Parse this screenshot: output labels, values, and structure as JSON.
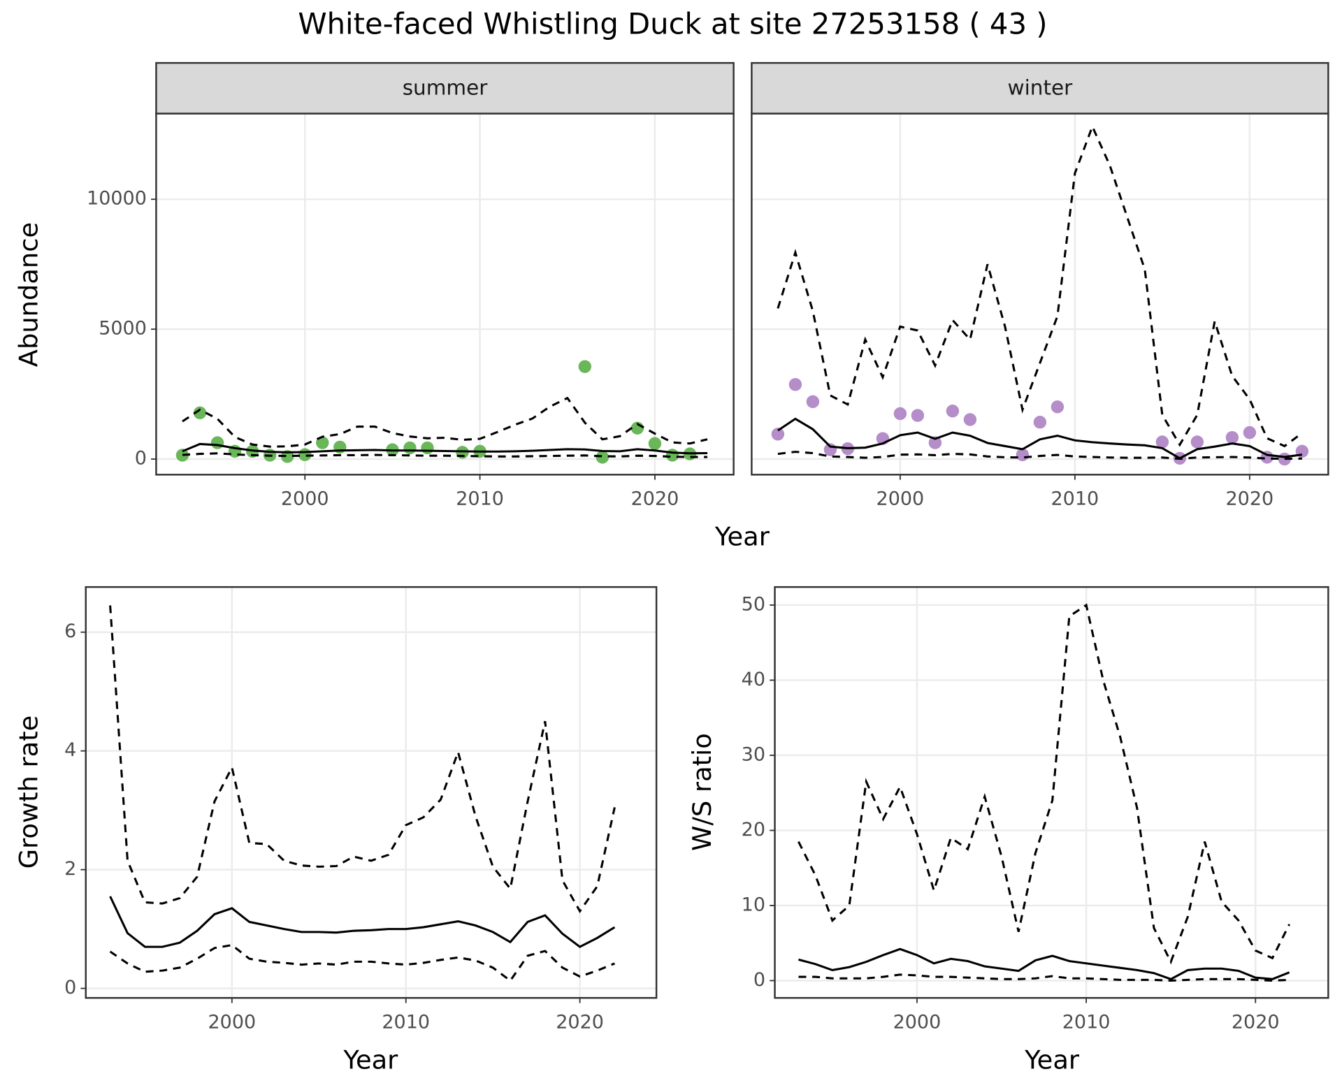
{
  "chart_data": [
    {
      "type": "line",
      "title": "White-faced Whistling Duck at site 27253158 ( 43 )",
      "xlabel": "Year",
      "ylabel": "Abundance",
      "xlim": [
        1991.5,
        2024.5
      ],
      "xticks": [
        2000,
        2010,
        2020
      ],
      "ylim": [
        -600,
        13300
      ],
      "yticks": [
        0,
        5000,
        10000
      ],
      "grid": true,
      "x": [
        1993,
        1994,
        1995,
        1996,
        1997,
        1998,
        1999,
        2000,
        2001,
        2002,
        2003,
        2004,
        2005,
        2006,
        2007,
        2008,
        2009,
        2010,
        2011,
        2012,
        2013,
        2014,
        2015,
        2016,
        2017,
        2018,
        2019,
        2020,
        2021,
        2022,
        2023
      ],
      "panels": [
        {
          "label": "summer",
          "series": [
            {
              "marker": "point",
              "color": "#6ab759",
              "values": [
                150,
                1780,
                630,
                300,
                300,
                150,
                100,
                170,
                630,
                460,
                null,
                null,
                360,
                430,
                430,
                null,
                260,
                300,
                null,
                null,
                null,
                null,
                null,
                3560,
                70,
                null,
                1190,
                600,
                150,
                200,
                null
              ]
            },
            {
              "linestyle": "solid",
              "color": "#000000",
              "values": [
                300,
                580,
                540,
                420,
                330,
                280,
                260,
                270,
                300,
                330,
                340,
                350,
                330,
                330,
                320,
                310,
                300,
                290,
                290,
                300,
                320,
                350,
                380,
                370,
                310,
                300,
                380,
                330,
                250,
                220,
                230
              ]
            },
            {
              "linestyle": "dashed",
              "color": "#000000",
              "values": [
                1450,
                1900,
                1550,
                850,
                560,
                480,
                490,
                560,
                860,
                960,
                1250,
                1250,
                1000,
                870,
                800,
                820,
                740,
                780,
                1040,
                1320,
                1560,
                2020,
                2350,
                1400,
                760,
                880,
                1350,
                980,
                640,
                600,
                760
              ]
            },
            {
              "linestyle": "dashed",
              "color": "#000000",
              "values": [
                160,
                200,
                220,
                180,
                150,
                130,
                120,
                130,
                140,
                150,
                150,
                160,
                150,
                140,
                130,
                130,
                120,
                110,
                100,
                100,
                110,
                120,
                130,
                140,
                110,
                100,
                130,
                120,
                90,
                80,
                80
              ]
            }
          ]
        },
        {
          "label": "winter",
          "series": [
            {
              "marker": "point",
              "color": "#b48dc9",
              "values": [
                960,
                2870,
                2210,
                360,
                400,
                null,
                790,
                1750,
                1680,
                630,
                1850,
                1520,
                null,
                null,
                165,
                1420,
                2010,
                null,
                null,
                null,
                null,
                null,
                660,
                30,
                660,
                null,
                830,
                1020,
                70,
                0,
                300
              ]
            },
            {
              "linestyle": "solid",
              "color": "#000000",
              "values": [
                1100,
                1550,
                1150,
                480,
                420,
                440,
                600,
                920,
                1020,
                780,
                1020,
                900,
                620,
                500,
                380,
                760,
                900,
                720,
                650,
                600,
                560,
                530,
                420,
                30,
                380,
                480,
                600,
                500,
                160,
                80,
                170
              ]
            },
            {
              "linestyle": "dashed",
              "color": "#000000",
              "values": [
                5800,
                7950,
                5700,
                2450,
                2100,
                4600,
                3150,
                5100,
                4950,
                3600,
                5350,
                4600,
                7500,
                5100,
                1900,
                3700,
                5500,
                11000,
                12800,
                11300,
                9300,
                7300,
                1700,
                550,
                1700,
                5300,
                3200,
                2300,
                800,
                500,
                1000
              ]
            },
            {
              "linestyle": "dashed",
              "color": "#000000",
              "values": [
                200,
                280,
                230,
                100,
                80,
                50,
                80,
                170,
                180,
                150,
                200,
                180,
                100,
                70,
                60,
                120,
                160,
                100,
                80,
                60,
                50,
                50,
                60,
                10,
                60,
                70,
                80,
                60,
                20,
                10,
                20
              ]
            }
          ]
        }
      ]
    },
    {
      "type": "line",
      "xlabel": "Year",
      "ylabel": "Growth rate",
      "xlim": [
        1991.6,
        2024.4
      ],
      "xticks": [
        2000,
        2010,
        2020
      ],
      "ylim": [
        -0.16,
        6.76
      ],
      "yticks": [
        0,
        2,
        4,
        6
      ],
      "grid": true,
      "x": [
        1993,
        1994,
        1995,
        1996,
        1997,
        1998,
        1999,
        2000,
        2001,
        2002,
        2003,
        2004,
        2005,
        2006,
        2007,
        2008,
        2009,
        2010,
        2011,
        2012,
        2013,
        2014,
        2015,
        2016,
        2017,
        2018,
        2019,
        2020,
        2021,
        2022
      ],
      "series": [
        {
          "linestyle": "solid",
          "color": "#000000",
          "values": [
            1.55,
            0.93,
            0.7,
            0.7,
            0.77,
            0.97,
            1.25,
            1.35,
            1.12,
            1.06,
            1.0,
            0.95,
            0.95,
            0.94,
            0.97,
            0.98,
            1.0,
            1.0,
            1.03,
            1.08,
            1.13,
            1.06,
            0.95,
            0.78,
            1.12,
            1.23,
            0.92,
            0.7,
            0.85,
            1.03
          ]
        },
        {
          "linestyle": "dashed",
          "color": "#000000",
          "values": [
            6.45,
            2.15,
            1.45,
            1.43,
            1.52,
            1.88,
            3.15,
            3.72,
            2.45,
            2.43,
            2.15,
            2.07,
            2.05,
            2.06,
            2.22,
            2.15,
            2.25,
            2.75,
            2.88,
            3.18,
            3.98,
            2.9,
            2.05,
            1.68,
            3.15,
            4.5,
            1.82,
            1.3,
            1.72,
            3.05
          ]
        },
        {
          "linestyle": "dashed",
          "color": "#000000",
          "values": [
            0.62,
            0.42,
            0.28,
            0.3,
            0.35,
            0.5,
            0.68,
            0.73,
            0.5,
            0.45,
            0.43,
            0.4,
            0.42,
            0.4,
            0.45,
            0.45,
            0.42,
            0.4,
            0.43,
            0.48,
            0.52,
            0.47,
            0.35,
            0.13,
            0.55,
            0.63,
            0.35,
            0.2,
            0.3,
            0.42
          ]
        }
      ]
    },
    {
      "type": "line",
      "xlabel": "Year",
      "ylabel": "W/S ratio",
      "xlim": [
        1991.6,
        2024.3
      ],
      "xticks": [
        2000,
        2010,
        2020
      ],
      "ylim": [
        -2.3,
        52.4
      ],
      "yticks": [
        0,
        10,
        20,
        30,
        40,
        50
      ],
      "grid": true,
      "x": [
        1993,
        1994,
        1995,
        1996,
        1997,
        1998,
        1999,
        2000,
        2001,
        2002,
        2003,
        2004,
        2005,
        2006,
        2007,
        2008,
        2009,
        2010,
        2011,
        2012,
        2013,
        2014,
        2015,
        2016,
        2017,
        2018,
        2019,
        2020,
        2021,
        2022
      ],
      "series": [
        {
          "linestyle": "solid",
          "color": "#000000",
          "values": [
            2.8,
            2.2,
            1.4,
            1.8,
            2.5,
            3.4,
            4.2,
            3.4,
            2.3,
            2.9,
            2.6,
            1.9,
            1.6,
            1.3,
            2.7,
            3.3,
            2.6,
            2.3,
            2.0,
            1.7,
            1.4,
            1.0,
            0.2,
            1.4,
            1.6,
            1.6,
            1.3,
            0.4,
            0.2,
            1.1
          ]
        },
        {
          "linestyle": "dashed",
          "color": "#000000",
          "values": [
            18.5,
            14,
            8,
            10,
            26.5,
            21.5,
            25.8,
            19.5,
            12,
            19,
            17.5,
            24.5,
            16.5,
            6.5,
            17,
            24,
            48.5,
            50,
            40,
            32.5,
            23,
            7,
            2.5,
            8.5,
            18.5,
            10.5,
            8,
            4,
            3,
            7.5
          ]
        },
        {
          "linestyle": "dashed",
          "color": "#000000",
          "values": [
            0.5,
            0.5,
            0.3,
            0.3,
            0.3,
            0.5,
            0.8,
            0.7,
            0.5,
            0.5,
            0.4,
            0.3,
            0.2,
            0.2,
            0.3,
            0.6,
            0.3,
            0.3,
            0.2,
            0.1,
            0.1,
            0.1,
            0,
            0.1,
            0.2,
            0.2,
            0.2,
            0.1,
            0,
            0.1
          ]
        }
      ]
    }
  ]
}
